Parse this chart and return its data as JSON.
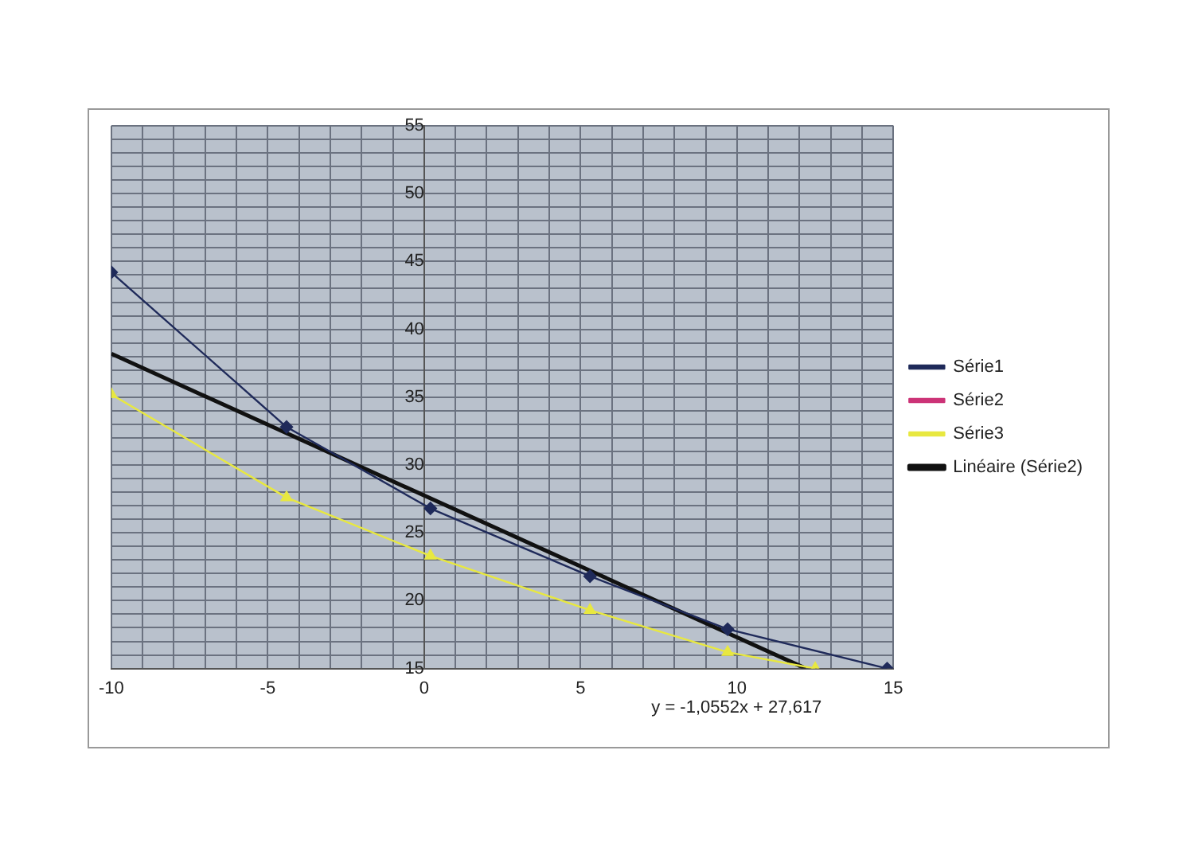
{
  "chart_data": {
    "type": "line",
    "xlim": [
      -10,
      15
    ],
    "ylim": [
      15,
      55
    ],
    "xticks": [
      -10,
      {
        "value": -9,
        "label": null
      },
      {
        "value": -8,
        "label": null
      },
      {
        "value": -7,
        "label": null
      },
      {
        "value": -6,
        "label": null
      },
      -5,
      {
        "value": -4,
        "label": null
      },
      {
        "value": -3,
        "label": null
      },
      {
        "value": -2,
        "label": null
      },
      {
        "value": -1,
        "label": null
      },
      0,
      {
        "value": 1,
        "label": null
      },
      {
        "value": 2,
        "label": null
      },
      {
        "value": 3,
        "label": null
      },
      {
        "value": 4,
        "label": null
      },
      5,
      {
        "value": 6,
        "label": null
      },
      {
        "value": 7,
        "label": null
      },
      {
        "value": 8,
        "label": null
      },
      {
        "value": 9,
        "label": null
      },
      10,
      {
        "value": 11,
        "label": null
      },
      {
        "value": 12,
        "label": null
      },
      {
        "value": 13,
        "label": null
      },
      {
        "value": 14,
        "label": null
      },
      15
    ],
    "yticks": [
      15,
      {
        "value": 16,
        "label": null
      },
      {
        "value": 17,
        "label": null
      },
      {
        "value": 18,
        "label": null
      },
      {
        "value": 19,
        "label": null
      },
      20,
      {
        "value": 21,
        "label": null
      },
      {
        "value": 22,
        "label": null
      },
      {
        "value": 23,
        "label": null
      },
      {
        "value": 24,
        "label": null
      },
      25,
      {
        "value": 26,
        "label": null
      },
      {
        "value": 27,
        "label": null
      },
      {
        "value": 28,
        "label": null
      },
      {
        "value": 29,
        "label": null
      },
      30,
      {
        "value": 31,
        "label": null
      },
      {
        "value": 32,
        "label": null
      },
      {
        "value": 33,
        "label": null
      },
      {
        "value": 34,
        "label": null
      },
      35,
      {
        "value": 36,
        "label": null
      },
      {
        "value": 37,
        "label": null
      },
      {
        "value": 38,
        "label": null
      },
      {
        "value": 39,
        "label": null
      },
      40,
      {
        "value": 41,
        "label": null
      },
      {
        "value": 42,
        "label": null
      },
      {
        "value": 43,
        "label": null
      },
      {
        "value": 44,
        "label": null
      },
      45,
      {
        "value": 46,
        "label": null
      },
      {
        "value": 47,
        "label": null
      },
      {
        "value": 48,
        "label": null
      },
      {
        "value": 49,
        "label": null
      },
      50,
      {
        "value": 51,
        "label": null
      },
      {
        "value": 52,
        "label": null
      },
      {
        "value": 53,
        "label": null
      },
      {
        "value": 54,
        "label": null
      },
      55
    ],
    "grid": true,
    "legend": "right",
    "series": [
      {
        "name": "Série1",
        "color": "#1f2a5a",
        "marker": "diamond",
        "x": [
          -10,
          -4.4,
          0.2,
          5.3,
          9.7,
          14.8
        ],
        "values": [
          44.2,
          32.8,
          26.8,
          21.8,
          17.9,
          15
        ]
      },
      {
        "name": "Série2",
        "color": "#cc3377",
        "marker": "square"
      },
      {
        "name": "Série3",
        "color": "#e8e840",
        "marker": "triangle",
        "x": [
          -10,
          -4.4,
          0.2,
          5.3,
          9.7,
          12.5
        ],
        "values": [
          35.2,
          27.6,
          23.3,
          19.3,
          16.2,
          15
        ]
      },
      {
        "name": "Linéaire (Série2)",
        "color": "#111111",
        "marker": "none",
        "x": [
          -10,
          12.2
        ],
        "values": [
          38.2,
          15
        ]
      }
    ],
    "annotations": [
      "y = -1,0552x + 27,617"
    ]
  }
}
